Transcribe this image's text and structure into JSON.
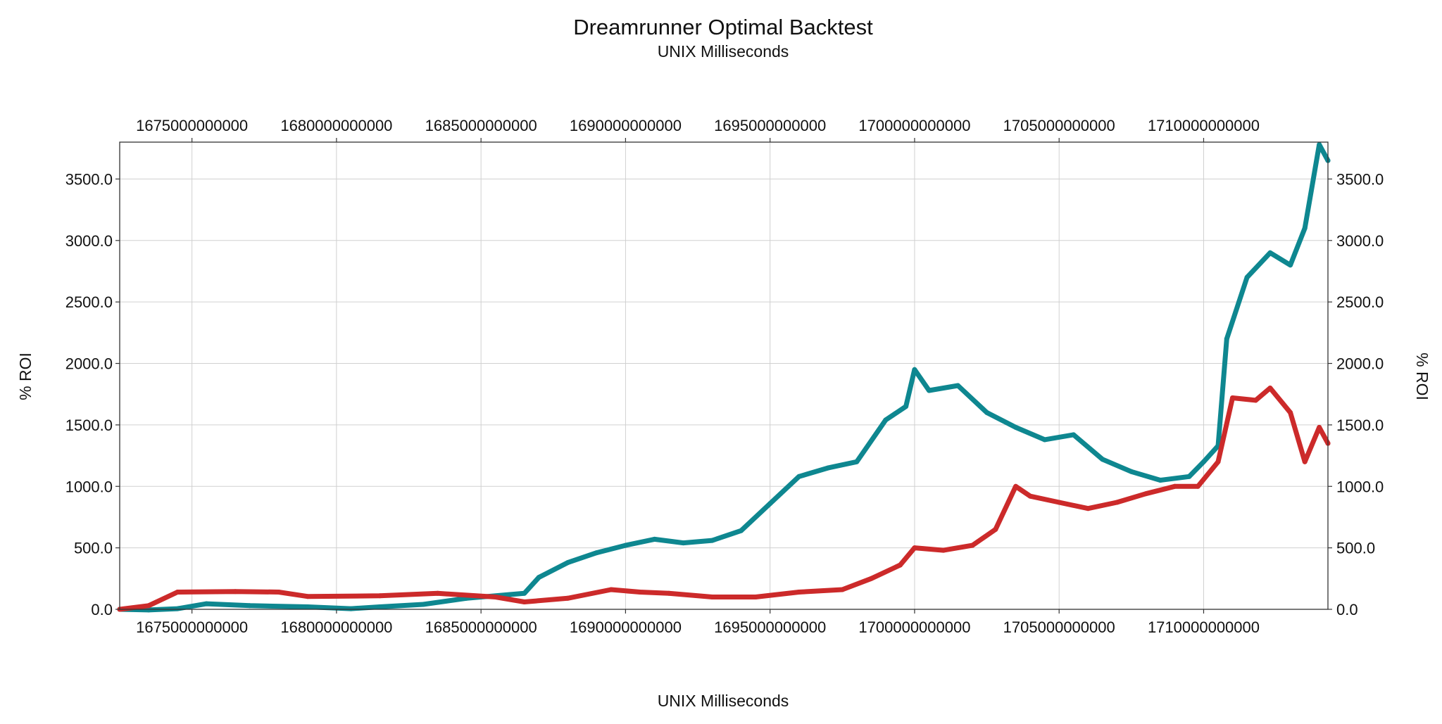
{
  "chart_data": {
    "type": "line",
    "title": "Dreamrunner Optimal Backtest",
    "subtitle": "UNIX Milliseconds",
    "xlabel": "UNIX Milliseconds",
    "ylabel": "% ROI",
    "xlim": [
      1672500000000,
      1714300000000
    ],
    "ylim": [
      0,
      3800
    ],
    "x_ticks": [
      {
        "value": 1675000000000,
        "label": "1675000000000"
      },
      {
        "value": 1680000000000,
        "label": "1680000000000"
      },
      {
        "value": 1685000000000,
        "label": "1685000000000"
      },
      {
        "value": 1690000000000,
        "label": "1690000000000"
      },
      {
        "value": 1695000000000,
        "label": "1695000000000"
      },
      {
        "value": 1700000000000,
        "label": "1700000000000"
      },
      {
        "value": 1705000000000,
        "label": "1705000000000"
      },
      {
        "value": 1710000000000,
        "label": "1710000000000"
      }
    ],
    "y_ticks": [
      {
        "value": 0,
        "label": "0.0"
      },
      {
        "value": 500,
        "label": "500.0"
      },
      {
        "value": 1000,
        "label": "1000.0"
      },
      {
        "value": 1500,
        "label": "1500.0"
      },
      {
        "value": 2000,
        "label": "2000.0"
      },
      {
        "value": 2500,
        "label": "2500.0"
      },
      {
        "value": 3000,
        "label": "3000.0"
      },
      {
        "value": 3500,
        "label": "3500.0"
      }
    ],
    "grid": true,
    "series": [
      {
        "color": "#0e8790",
        "x": [
          1672500000000,
          1673500000000,
          1674500000000,
          1675500000000,
          1677000000000,
          1679000000000,
          1680500000000,
          1681500000000,
          1683000000000,
          1684500000000,
          1686000000000,
          1686500000000,
          1687000000000,
          1688000000000,
          1689000000000,
          1690000000000,
          1691000000000,
          1692000000000,
          1693000000000,
          1694000000000,
          1695000000000,
          1696000000000,
          1697000000000,
          1698000000000,
          1699000000000,
          1699700000000,
          1700000000000,
          1700500000000,
          1701500000000,
          1702500000000,
          1703500000000,
          1704500000000,
          1705500000000,
          1706500000000,
          1707500000000,
          1708500000000,
          1709500000000,
          1710000000000,
          1710500000000,
          1710800000000,
          1711500000000,
          1712300000000,
          1713000000000,
          1713500000000,
          1714000000000,
          1714300000000
        ],
        "y": [
          0,
          -5,
          5,
          45,
          30,
          20,
          5,
          20,
          40,
          90,
          120,
          130,
          260,
          380,
          460,
          520,
          570,
          540,
          560,
          640,
          860,
          1080,
          1150,
          1200,
          1540,
          1650,
          1950,
          1780,
          1820,
          1600,
          1480,
          1380,
          1420,
          1220,
          1120,
          1050,
          1080,
          1200,
          1330,
          2200,
          2700,
          2900,
          2800,
          3100,
          3780,
          3650
        ]
      },
      {
        "color": "#cc2a2a",
        "x": [
          1672500000000,
          1673500000000,
          1674500000000,
          1676500000000,
          1678000000000,
          1679000000000,
          1681500000000,
          1683500000000,
          1685500000000,
          1686500000000,
          1688000000000,
          1689500000000,
          1690500000000,
          1691500000000,
          1693000000000,
          1694500000000,
          1696000000000,
          1697500000000,
          1698500000000,
          1699500000000,
          1700000000000,
          1701000000000,
          1702000000000,
          1702800000000,
          1703500000000,
          1704000000000,
          1705000000000,
          1706000000000,
          1707000000000,
          1708000000000,
          1709000000000,
          1709800000000,
          1710500000000,
          1711000000000,
          1711800000000,
          1712300000000,
          1713000000000,
          1713500000000,
          1714000000000,
          1714300000000
        ],
        "y": [
          0,
          30,
          140,
          145,
          140,
          105,
          110,
          130,
          100,
          60,
          90,
          160,
          140,
          130,
          100,
          100,
          140,
          160,
          250,
          360,
          500,
          480,
          520,
          650,
          1000,
          920,
          870,
          820,
          870,
          940,
          1000,
          1000,
          1200,
          1720,
          1700,
          1800,
          1600,
          1200,
          1480,
          1350
        ]
      }
    ]
  }
}
